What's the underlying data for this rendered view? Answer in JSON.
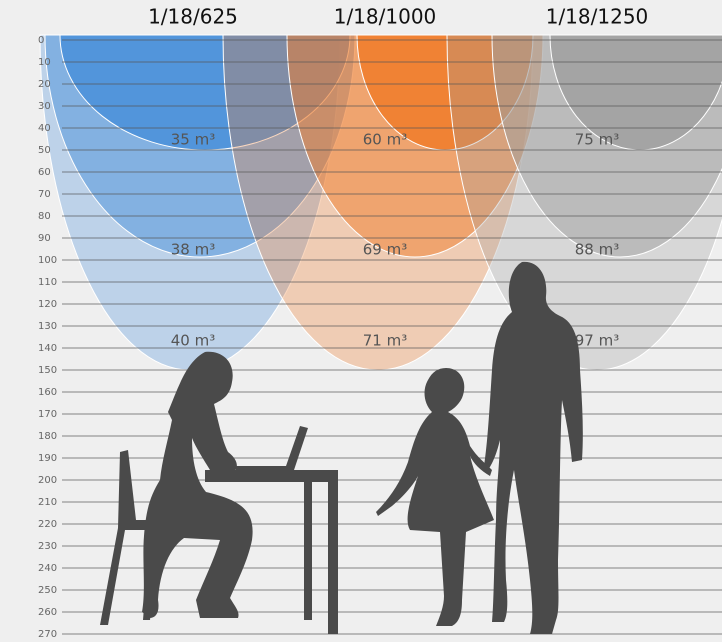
{
  "columns": [
    {
      "title": "1/18/625",
      "volumes": [
        "35 m³",
        "38 m³",
        "40 m³"
      ]
    },
    {
      "title": "1/18/1000",
      "volumes": [
        "60 m³",
        "69 m³",
        "71 m³"
      ]
    },
    {
      "title": "1/18/1250",
      "volumes": [
        "75 m³",
        "88 m³",
        "97 m³"
      ]
    }
  ],
  "scale": {
    "ticks": [
      0,
      10,
      20,
      30,
      40,
      50,
      60,
      70,
      80,
      90,
      100,
      110,
      120,
      130,
      140,
      150,
      160,
      170,
      180,
      190,
      200,
      210,
      220,
      230,
      240,
      250,
      260,
      270
    ]
  }
}
